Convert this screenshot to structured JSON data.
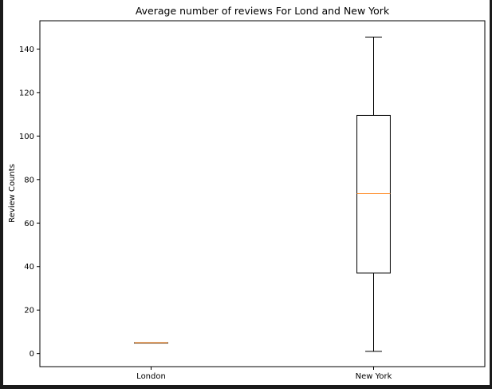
{
  "chart_data": {
    "type": "box",
    "title": "Average number of reviews For Lond and New York",
    "xlabel": "",
    "ylabel": "Review Counts",
    "ylim": [
      -6,
      153
    ],
    "yticks": [
      0,
      20,
      40,
      60,
      80,
      100,
      120,
      140
    ],
    "categories": [
      "London",
      "New York"
    ],
    "boxes": [
      {
        "category": "London",
        "whislo": 5,
        "q1": 5,
        "med": 5,
        "q3": 5,
        "whishi": 5
      },
      {
        "category": "New York",
        "whislo": 1,
        "q1": 37,
        "med": 73.5,
        "q3": 109.5,
        "whishi": 145.5
      }
    ],
    "grid": false,
    "colors": {
      "box": "#000000",
      "median": "#ff7f0e",
      "background": "#ffffff",
      "frame": "#1a1a1a"
    }
  }
}
